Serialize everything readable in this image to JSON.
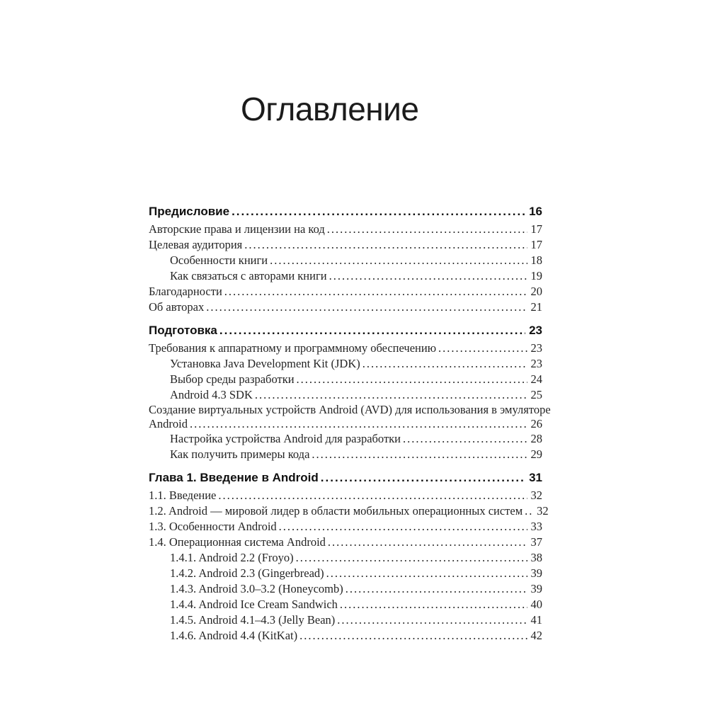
{
  "title": "Оглавление",
  "toc": {
    "sections": [
      {
        "entries": [
          {
            "label": "Предисловие",
            "page": "16",
            "bold": true,
            "indent": 0
          },
          {
            "label": "Авторские права и лицензии на код",
            "page": "17",
            "indent": 0
          },
          {
            "label": "Целевая аудитория",
            "page": "17",
            "indent": 0
          },
          {
            "label": "Особенности книги",
            "page": "18",
            "indent": 1
          },
          {
            "label": "Как связаться с авторами книги",
            "page": "19",
            "indent": 1
          },
          {
            "label": "Благодарности",
            "page": "20",
            "indent": 0
          },
          {
            "label": "Об авторах",
            "page": "21",
            "indent": 0
          }
        ]
      },
      {
        "entries": [
          {
            "label": "Подготовка",
            "page": "23",
            "bold": true,
            "indent": 0
          },
          {
            "label": "Требования к аппаратному и программному обеспечению",
            "page": "23",
            "indent": 0
          },
          {
            "label": "Установка Java Development Kit (JDK)",
            "page": "23",
            "indent": 1
          },
          {
            "label": "Выбор среды разработки",
            "page": "24",
            "indent": 1
          },
          {
            "label": "Android 4.3 SDK",
            "page": "25",
            "indent": 1
          },
          {
            "wrap_line": "Создание виртуальных устройств Android (AVD) для использования в эмуляторе",
            "label": "Android",
            "page": "26",
            "indent": 0
          },
          {
            "label": "Настройка устройства Android для разработки",
            "page": "28",
            "indent": 1
          },
          {
            "label": "Как получить примеры кода",
            "page": "29",
            "indent": 1
          }
        ]
      },
      {
        "entries": [
          {
            "label": "Глава 1. Введение в Android",
            "page": "31",
            "bold": true,
            "indent": 0
          },
          {
            "label": "1.1. Введение",
            "page": "32",
            "indent": 0
          },
          {
            "label": "1.2. Android — мировой лидер в области мобильных операционных систем",
            "page": "32",
            "indent": 0
          },
          {
            "label": "1.3. Особенности Android",
            "page": "33",
            "indent": 0
          },
          {
            "label": "1.4. Операционная система Android",
            "page": "37",
            "indent": 0
          },
          {
            "label": "1.4.1. Android 2.2 (Froyo)",
            "page": "38",
            "indent": 1
          },
          {
            "label": "1.4.2. Android 2.3 (Gingerbread)",
            "page": "39",
            "indent": 1
          },
          {
            "label": "1.4.3. Android 3.0–3.2 (Honeycomb)",
            "page": "39",
            "indent": 1
          },
          {
            "label": "1.4.4. Android Ice Cream Sandwich",
            "page": "40",
            "indent": 1
          },
          {
            "label": "1.4.5. Android 4.1–4.3 (Jelly Bean)",
            "page": "41",
            "indent": 1
          },
          {
            "label": "1.4.6. Android 4.4 (KitKat)",
            "page": "42",
            "indent": 1
          }
        ]
      }
    ]
  }
}
